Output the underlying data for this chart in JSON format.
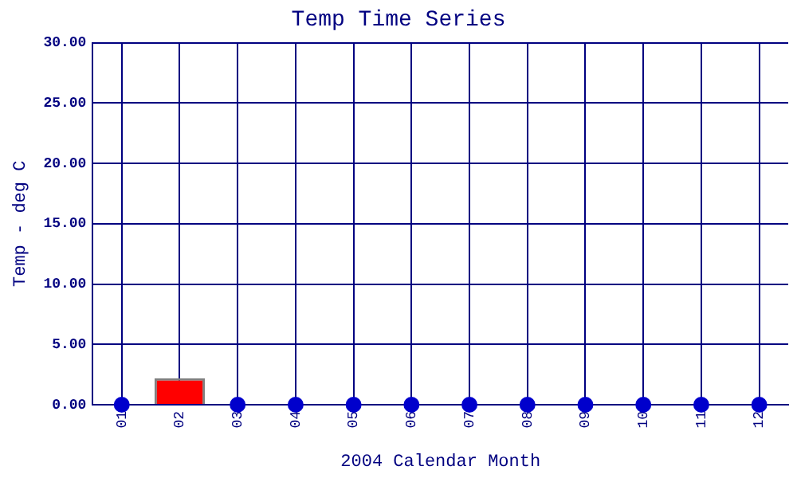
{
  "chart_data": {
    "type": "bar",
    "title": "Temp Time Series",
    "xlabel": "2004 Calendar Month",
    "ylabel": "Temp - deg C",
    "categories": [
      "01",
      "02",
      "03",
      "04",
      "05",
      "06",
      "07",
      "08",
      "09",
      "10",
      "11",
      "12"
    ],
    "series": [
      {
        "color": "#ff0000",
        "values": [
          null,
          2.2,
          null,
          null,
          null,
          null,
          null,
          null,
          null,
          null,
          null,
          null
        ]
      },
      {
        "type": "scatter",
        "color": "#0000cc",
        "marker": "circle",
        "x": [
          "01",
          "02",
          "03",
          "04",
          "05",
          "06",
          "07",
          "08",
          "09",
          "10",
          "11",
          "12"
        ],
        "values": [
          0,
          null,
          0,
          0,
          0,
          0,
          0,
          0,
          0,
          0,
          0,
          0
        ]
      }
    ],
    "ylim": [
      0,
      30
    ],
    "yticks": [
      {
        "value": 0,
        "label": "0.00"
      },
      {
        "value": 5,
        "label": "5.00"
      },
      {
        "value": 10,
        "label": "10.00"
      },
      {
        "value": 15,
        "label": "15.00"
      },
      {
        "value": 20,
        "label": "20.00"
      },
      {
        "value": 25,
        "label": "25.00"
      },
      {
        "value": 30,
        "label": "30.00"
      }
    ],
    "grid": true,
    "legend": false
  }
}
